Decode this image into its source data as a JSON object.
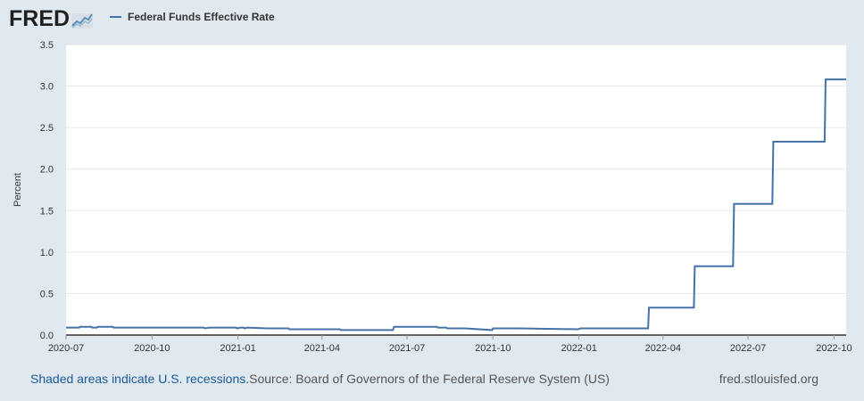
{
  "header": {
    "logo_text": "FRED",
    "legend_label": "Federal Funds Effective Rate"
  },
  "footer": {
    "recession_note": "Shaded areas indicate U.S. recessions.",
    "source": "Source: Board of Governors of the Federal Reserve System (US)",
    "site": "fred.stlouisfed.org"
  },
  "colors": {
    "line": "#4572a7",
    "plot_bg": "#ffffff",
    "page_bg": "#e1e9f0",
    "grid": "#e6e6e6"
  },
  "chart_data": {
    "type": "line",
    "title": "",
    "xlabel": "",
    "ylabel": "Percent",
    "xlim": [
      "2020-07-01",
      "2022-10-14"
    ],
    "ylim": [
      0,
      3.5
    ],
    "yticks": [
      0,
      0.5,
      1.0,
      1.5,
      2.0,
      2.5,
      3.0,
      3.5
    ],
    "ytick_labels": [
      "0.0",
      "0.5",
      "1.0",
      "1.5",
      "2.0",
      "2.5",
      "3.0",
      "3.5"
    ],
    "xticks": [
      "2020-07-01",
      "2020-10-01",
      "2021-01-01",
      "2021-04-01",
      "2021-07-01",
      "2021-10-01",
      "2022-01-01",
      "2022-04-01",
      "2022-07-01",
      "2022-10-01"
    ],
    "xtick_labels": [
      "2020-07",
      "2020-10",
      "2021-01",
      "2021-04",
      "2021-07",
      "2021-10",
      "2022-01",
      "2022-04",
      "2022-07",
      "2022-10"
    ],
    "grid": true,
    "legend_position": "top-left",
    "series": [
      {
        "name": "Federal Funds Effective Rate",
        "x": [
          "2020-07-01",
          "2020-07-15",
          "2020-07-16",
          "2020-07-28",
          "2020-07-29",
          "2020-08-03",
          "2020-08-04",
          "2020-08-20",
          "2020-08-21",
          "2020-11-25",
          "2020-11-27",
          "2020-12-01",
          "2020-12-30",
          "2020-12-31",
          "2021-01-04",
          "2021-01-07",
          "2021-01-08",
          "2021-01-11",
          "2021-02-01",
          "2021-02-24",
          "2021-02-25",
          "2021-03-15",
          "2021-03-16",
          "2021-04-20",
          "2021-04-21",
          "2021-06-16",
          "2021-06-17",
          "2021-07-13",
          "2021-08-02",
          "2021-08-03",
          "2021-08-12",
          "2021-08-13",
          "2021-08-31",
          "2021-09-01",
          "2021-09-30",
          "2021-10-01",
          "2021-10-28",
          "2021-10-29",
          "2021-12-31",
          "2022-01-03",
          "2022-03-16",
          "2022-03-17",
          "2022-05-04",
          "2022-05-05",
          "2022-06-15",
          "2022-06-16",
          "2022-07-27",
          "2022-07-28",
          "2022-09-21",
          "2022-09-22",
          "2022-10-14"
        ],
        "y": [
          0.09,
          0.09,
          0.1,
          0.1,
          0.09,
          0.09,
          0.1,
          0.1,
          0.09,
          0.09,
          0.08,
          0.09,
          0.09,
          0.08,
          0.09,
          0.09,
          0.08,
          0.09,
          0.08,
          0.08,
          0.07,
          0.07,
          0.07,
          0.07,
          0.06,
          0.06,
          0.1,
          0.1,
          0.1,
          0.09,
          0.09,
          0.08,
          0.08,
          0.08,
          0.06,
          0.08,
          0.08,
          0.08,
          0.07,
          0.08,
          0.08,
          0.33,
          0.33,
          0.83,
          0.83,
          1.58,
          1.58,
          2.33,
          2.33,
          3.08,
          3.08
        ]
      }
    ]
  }
}
